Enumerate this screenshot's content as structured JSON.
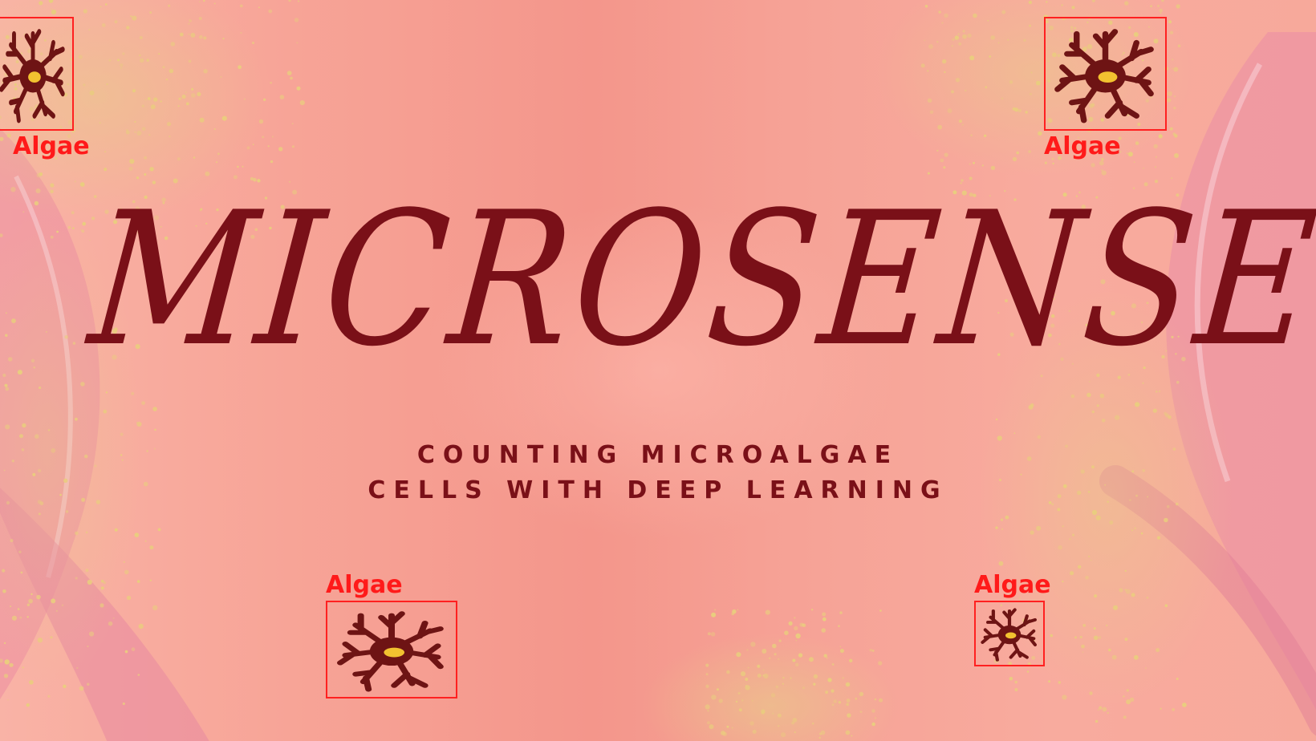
{
  "title": "MICROSENSE",
  "subtitle": {
    "line1": "COUNTING MICROALGAE",
    "line2": "CELLS WITH DEEP LEARNING"
  },
  "detections": [
    {
      "label": "Algae",
      "icon": "algae-cell-icon"
    },
    {
      "label": "Algae",
      "icon": "algae-cell-icon"
    },
    {
      "label": "Algae",
      "icon": "algae-cell-icon"
    },
    {
      "label": "Algae",
      "icon": "algae-cell-icon"
    }
  ],
  "colors": {
    "title": "#7a1018",
    "box": "#ff2020",
    "cell": "#6e1414",
    "nucleus": "#f2c230",
    "background": "#f6a79a"
  }
}
